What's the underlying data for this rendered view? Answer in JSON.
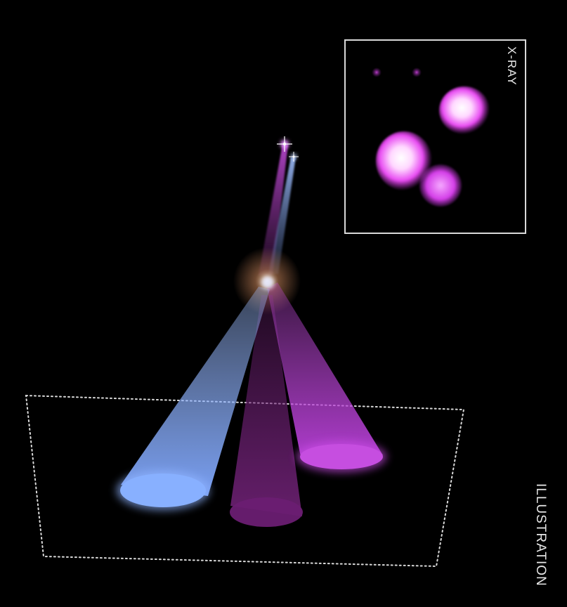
{
  "inset": {
    "label": "X-RAY"
  },
  "caption": {
    "label": "ILLUSTRATION"
  },
  "colors": {
    "background": "#000000",
    "blue_beam": "#7fa7ff",
    "purple_beam": "#b63fd6",
    "dark_purple_beam": "#7a2480",
    "xray_blob": "#e84bf2",
    "xray_core": "#ffffff",
    "halo": "#c9855a",
    "frame": "#d9d9d9"
  }
}
